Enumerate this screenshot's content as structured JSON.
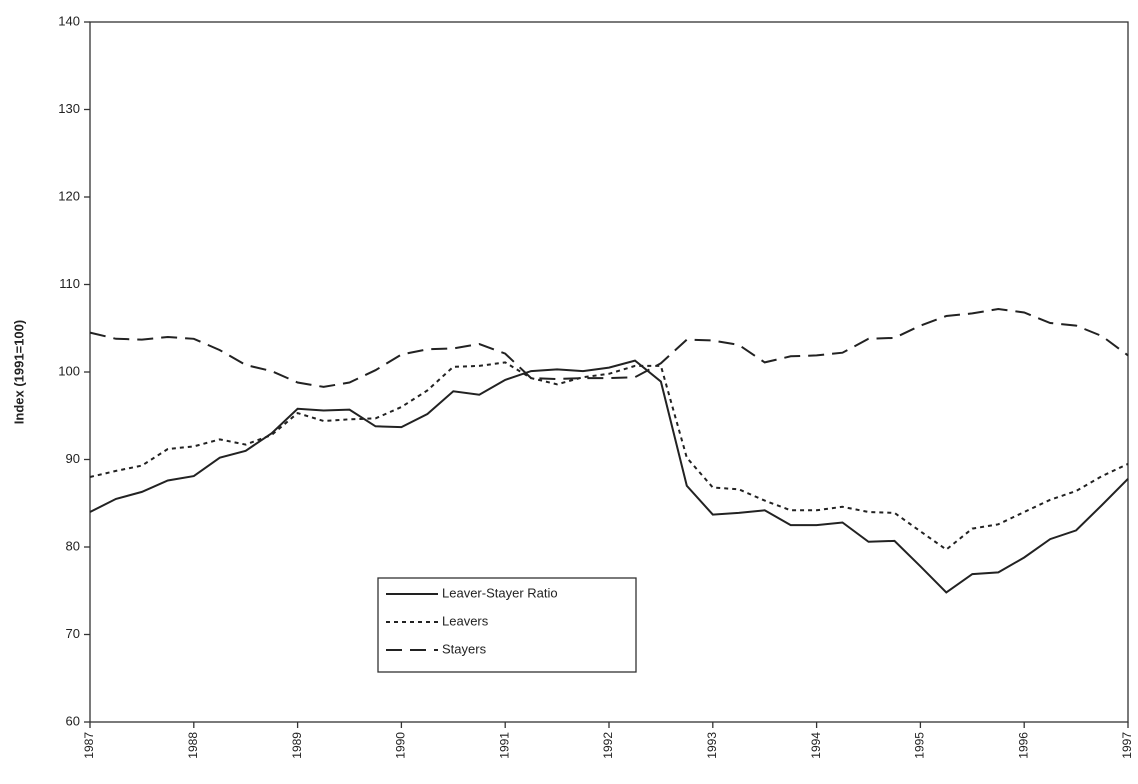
{
  "chart_data": {
    "type": "line",
    "y_label": "Index (1991=100)",
    "x": [
      1987,
      1987.25,
      1987.5,
      1987.75,
      1988,
      1988.25,
      1988.5,
      1988.75,
      1989,
      1989.25,
      1989.5,
      1989.75,
      1990,
      1990.25,
      1990.5,
      1990.75,
      1991,
      1991.25,
      1991.5,
      1991.75,
      1992,
      1992.25,
      1992.5,
      1992.75,
      1993,
      1993.25,
      1993.5,
      1993.75,
      1994,
      1994.25,
      1994.5,
      1994.75,
      1995,
      1995.25,
      1995.5,
      1995.75,
      1996,
      1996.25,
      1996.5,
      1996.75,
      1997
    ],
    "series": [
      {
        "name": "Leaver-Stayer Ratio",
        "color": "#222",
        "dash": "none",
        "values": [
          84,
          85.5,
          86.3,
          87.6,
          88.1,
          90.2,
          91,
          93,
          95.8,
          95.6,
          95.7,
          93.8,
          93.7,
          95.2,
          97.8,
          97.4,
          99.1,
          100.1,
          100.3,
          100.1,
          100.5,
          101.3,
          98.9,
          87,
          83.7,
          83.9,
          84.2,
          82.5,
          82.5,
          82.8,
          80.6,
          80.7,
          77.8,
          74.8,
          76.9,
          77.1,
          78.8,
          80.9,
          81.9,
          84.8,
          87.8
        ]
      },
      {
        "name": "Leavers",
        "color": "#222",
        "dash": "4,4",
        "values": [
          88,
          88.7,
          89.3,
          91.2,
          91.5,
          92.3,
          91.7,
          92.8,
          95.3,
          94.4,
          94.6,
          94.7,
          96,
          97.9,
          100.6,
          100.7,
          101.1,
          99.3,
          98.6,
          99.4,
          99.8,
          100.7,
          100.7,
          90.2,
          86.8,
          86.6,
          85.3,
          84.2,
          84.2,
          84.6,
          84,
          83.9,
          81.8,
          79.7,
          82.1,
          82.6,
          84,
          85.4,
          86.4,
          88.1,
          89.5
        ]
      },
      {
        "name": "Stayers",
        "color": "#222",
        "dash": "16,8",
        "values": [
          104.5,
          103.8,
          103.7,
          104,
          103.8,
          102.5,
          100.8,
          100.1,
          98.8,
          98.3,
          98.8,
          100.2,
          102,
          102.6,
          102.7,
          103.2,
          102.1,
          99.3,
          99.2,
          99.3,
          99.3,
          99.4,
          101,
          103.7,
          103.6,
          103.1,
          101.1,
          101.8,
          101.9,
          102.2,
          103.8,
          103.9,
          105.3,
          106.4,
          106.7,
          107.2,
          106.8,
          105.6,
          105.3,
          104.1,
          101.9
        ]
      }
    ],
    "xlim": [
      1987,
      1997
    ],
    "xticks": [
      1987,
      1988,
      1989,
      1990,
      1991,
      1992,
      1993,
      1994,
      1995,
      1996,
      1997
    ],
    "ylim": [
      60,
      140
    ],
    "yticks": [
      60,
      70,
      80,
      90,
      100,
      110,
      120,
      130,
      140
    ],
    "grid": false,
    "legend": "lower-center"
  }
}
